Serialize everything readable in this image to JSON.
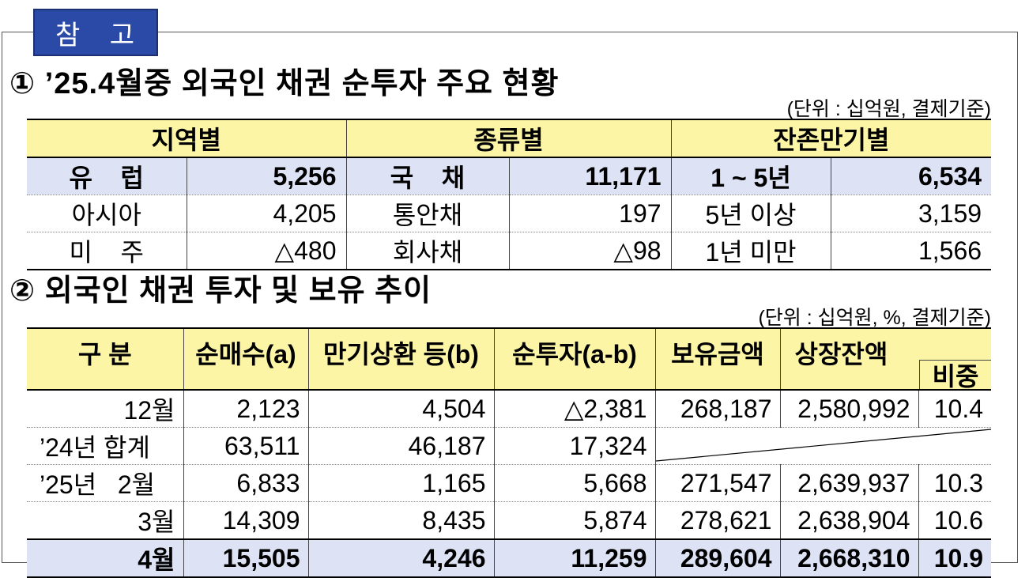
{
  "tag": "참 고",
  "section1": {
    "title": "① ’25.4월중 외국인 채권 순투자 주요 현황",
    "unit": "(단위 : 십억원, 결제기준)",
    "headers": [
      "지역별",
      "종류별",
      "잔존만기별"
    ],
    "rows": [
      [
        "유    럽",
        "5,256",
        "국    채",
        "11,171",
        "1 ~ 5년",
        "6,534"
      ],
      [
        "아시아",
        "4,205",
        "통안채",
        "197",
        "5년 이상",
        "3,159"
      ],
      [
        "미    주",
        "△480",
        "회사채",
        "△98",
        "1년 미만",
        "1,566"
      ]
    ]
  },
  "section2": {
    "title": "② 외국인 채권 투자 및 보유 추이",
    "unit": "(단위 : 십억원, %, 결제기준)",
    "headers": [
      "구 분",
      "순매수(a)",
      "만기상환 등(b)",
      "순투자(a-b)",
      "보유금액",
      "상장잔액",
      "비중"
    ],
    "rows": [
      [
        "12월",
        "2,123",
        "4,504",
        "△2,381",
        "268,187",
        "2,580,992",
        "10.4"
      ],
      [
        "’24년 합계",
        "63,511",
        "46,187",
        "17,324",
        "",
        "",
        ""
      ],
      [
        "’25년   2월",
        "6,833",
        "1,165",
        "5,668",
        "271,547",
        "2,639,937",
        "10.3"
      ],
      [
        "3월",
        "14,309",
        "8,435",
        "5,874",
        "278,621",
        "2,638,904",
        "10.6"
      ]
    ],
    "total": [
      "4월",
      "15,505",
      "4,246",
      "11,259",
      "289,604",
      "2,668,310",
      "10.9"
    ]
  }
}
